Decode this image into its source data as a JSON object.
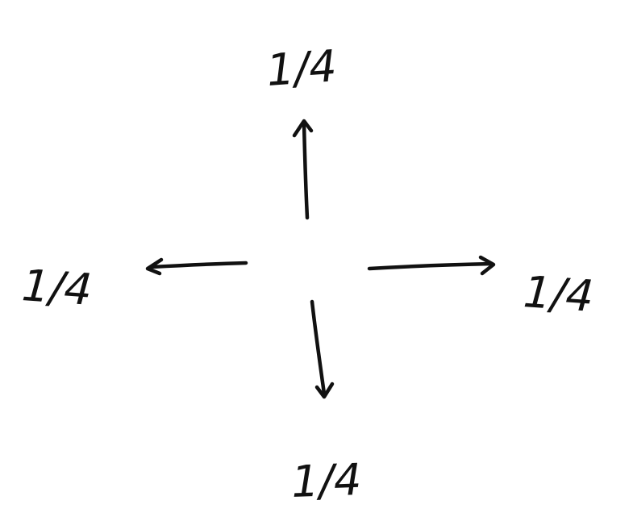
{
  "diagram": {
    "ink_color": "#111111",
    "background_color": "#ffffff",
    "arrows": [
      {
        "direction": "up",
        "label": "1/4"
      },
      {
        "direction": "left",
        "label": "1/4"
      },
      {
        "direction": "right",
        "label": "1/4"
      },
      {
        "direction": "down",
        "label": "1/4"
      }
    ]
  }
}
